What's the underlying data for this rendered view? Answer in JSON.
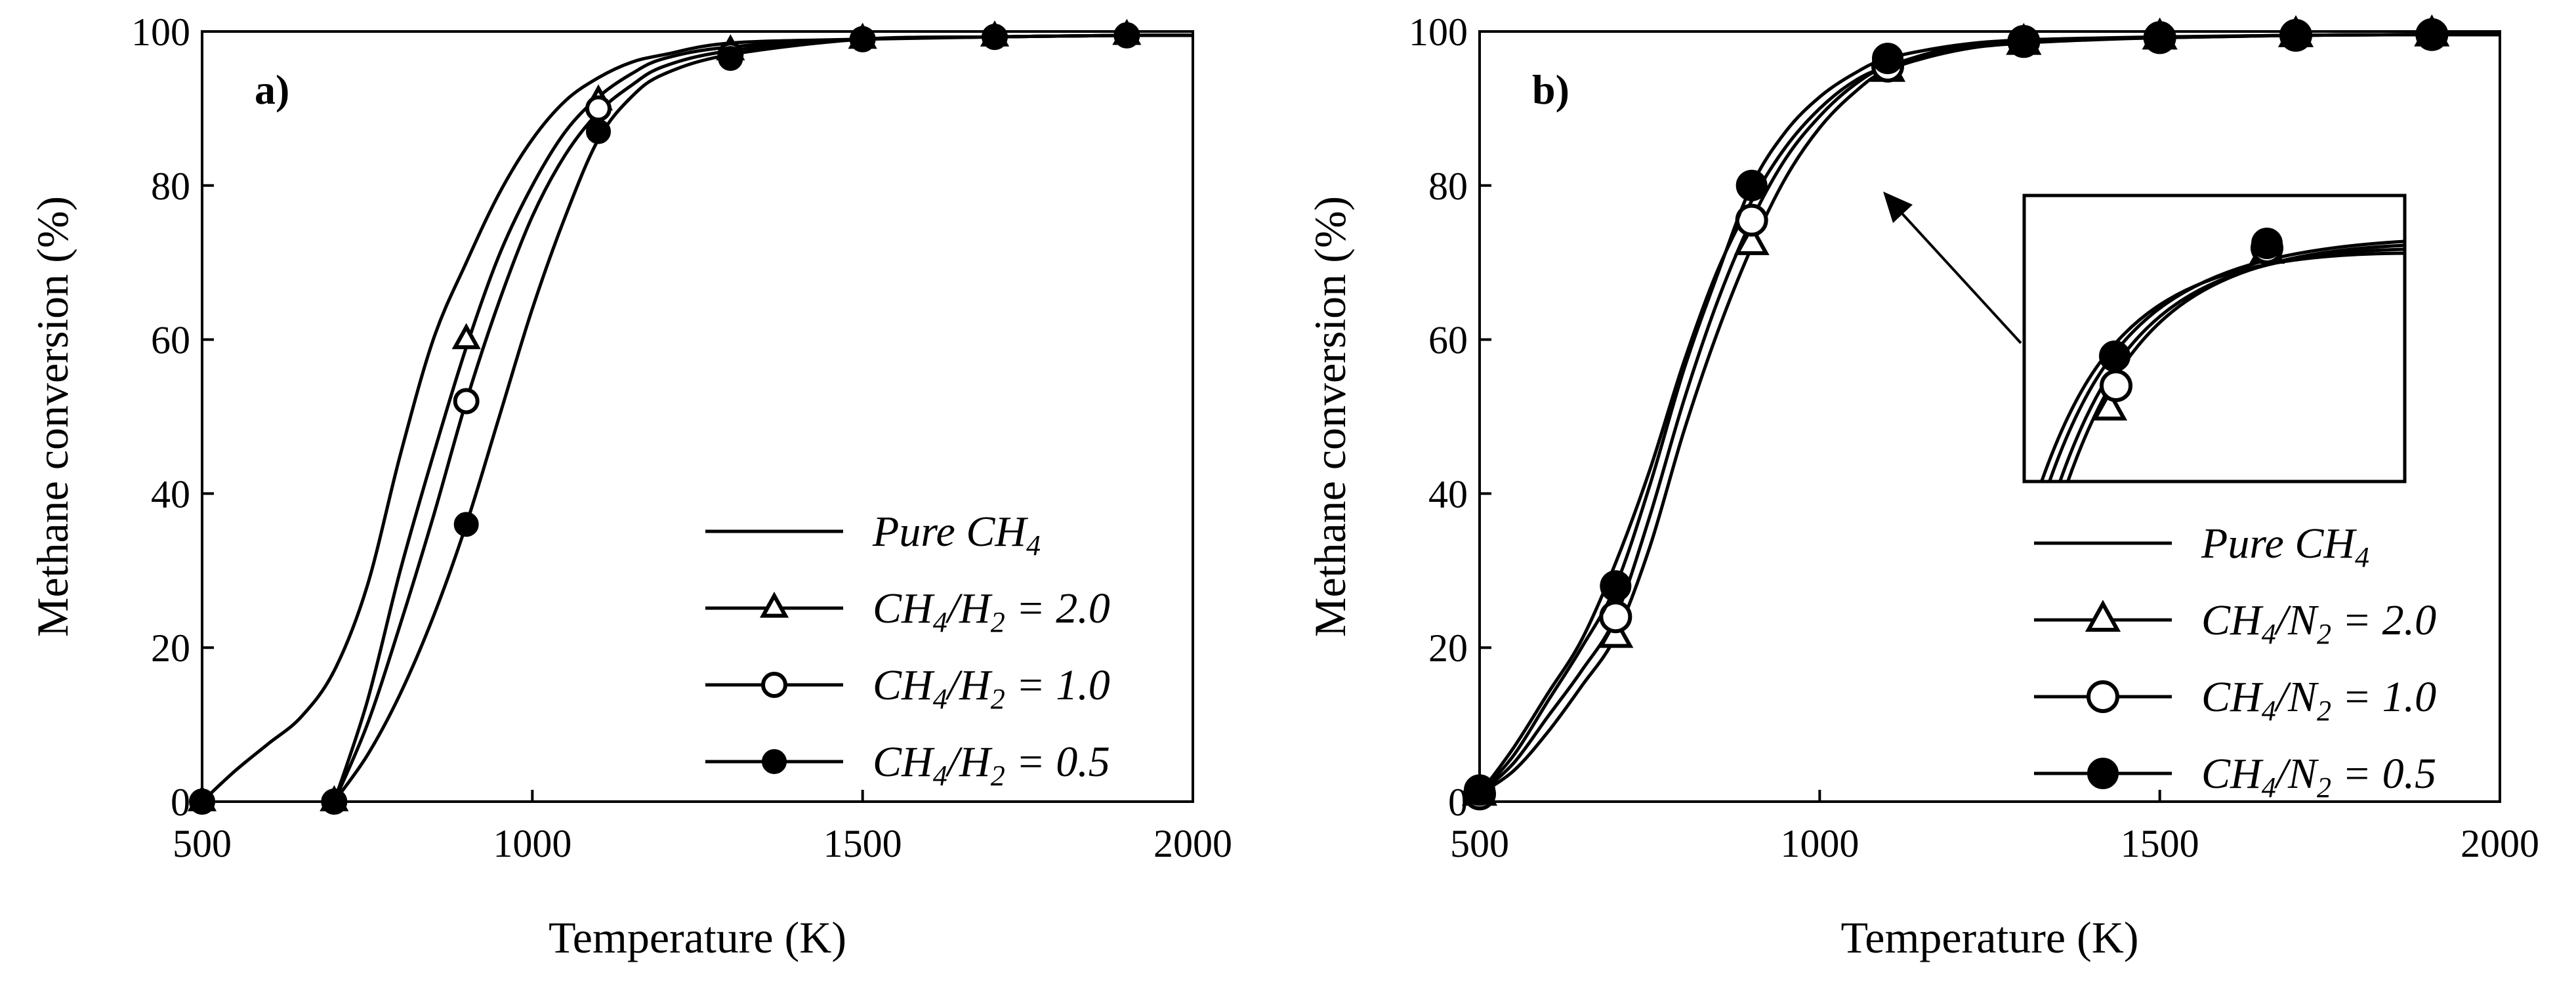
{
  "chart_data": [
    {
      "type": "line",
      "panel_label": "a)",
      "xlabel": "Temperature (K)",
      "ylabel": "Methane conversion (%)",
      "xlim": [
        500,
        2000
      ],
      "ylim": [
        0,
        100
      ],
      "xticks": [
        500,
        1000,
        1500,
        2000
      ],
      "yticks": [
        0,
        20,
        40,
        60,
        80,
        100
      ],
      "legend_position": "bottom-right",
      "series": [
        {
          "name": "Pure CH4",
          "label": {
            "main": "Pure CH",
            "sub": "4",
            "tail": ""
          },
          "marker": "none",
          "curve": {
            "x": [
              500,
              550,
              600,
              650,
              700,
              750,
              800,
              850,
              900,
              950,
              1000,
              1050,
              1100,
              1150,
              1200,
              1300,
              1500,
              1700,
              1900,
              2000
            ],
            "y": [
              0,
              4,
              7.5,
              11,
              17,
              28,
              45,
              60,
              70,
              79,
              86,
              91,
              94,
              96,
              97,
              98.5,
              99,
              99.3,
              99.5,
              99.5
            ]
          },
          "points": {
            "x": [],
            "y": []
          }
        },
        {
          "name": "CH4/H2 = 2.0",
          "label": {
            "main": "CH",
            "sub": "4",
            "tail": "/H",
            "sub2": "2",
            "end": " = 2.0"
          },
          "marker": "triangle-open",
          "curve": {
            "x": [
              700,
              750,
              800,
              850,
              900,
              950,
              1000,
              1050,
              1100,
              1150,
              1200,
              1300,
              1500,
              1700,
              1900,
              2000
            ],
            "y": [
              0,
              13,
              30,
              45,
              59,
              71,
              80,
              87,
              91.5,
              94.5,
              96.5,
              98,
              99,
              99.3,
              99.5,
              99.5
            ]
          },
          "points": {
            "x": [
              500,
              700,
              900,
              1100,
              1300,
              1500,
              1700,
              1900
            ],
            "y": [
              0,
              0,
              60,
              91,
              97.5,
              99,
              99.3,
              99.5
            ]
          }
        },
        {
          "name": "CH4/H2 = 1.0",
          "label": {
            "main": "CH",
            "sub": "4",
            "tail": "/H",
            "sub2": "2",
            "end": " = 1.0"
          },
          "marker": "circle-open",
          "curve": {
            "x": [
              700,
              750,
              800,
              850,
              900,
              950,
              1000,
              1050,
              1100,
              1150,
              1200,
              1300,
              1500,
              1700,
              1900,
              2000
            ],
            "y": [
              0,
              10,
              23,
              37,
              52,
              65,
              76,
              84,
              89.5,
              93,
              95.5,
              97.5,
              99,
              99.3,
              99.5,
              99.5
            ]
          },
          "points": {
            "x": [
              500,
              700,
              900,
              1100,
              1300,
              1500,
              1700,
              1900
            ],
            "y": [
              0,
              0,
              52,
              90,
              97,
              99,
              99.3,
              99.5
            ]
          }
        },
        {
          "name": "CH4/H2 = 0.5",
          "label": {
            "main": "CH",
            "sub": "4",
            "tail": "/H",
            "sub2": "2",
            "end": " = 0.5"
          },
          "marker": "circle-filled",
          "curve": {
            "x": [
              700,
              750,
              800,
              850,
              900,
              950,
              1000,
              1050,
              1100,
              1150,
              1200,
              1300,
              1500,
              1700,
              1900,
              2000
            ],
            "y": [
              0,
              6,
              14,
              24,
              36,
              50,
              64,
              76,
              86,
              91.5,
              94.5,
              97,
              99,
              99.3,
              99.5,
              99.5
            ]
          },
          "points": {
            "x": [
              500,
              700,
              900,
              1100,
              1300,
              1500,
              1700,
              1900
            ],
            "y": [
              0,
              0,
              36,
              87,
              96.5,
              99,
              99.3,
              99.5
            ]
          }
        }
      ]
    },
    {
      "type": "line",
      "panel_label": "b)",
      "xlabel": "Temperature (K)",
      "ylabel": "Methane conversion (%)",
      "xlim": [
        500,
        2000
      ],
      "ylim": [
        0,
        100
      ],
      "xticks": [
        500,
        1000,
        1500,
        2000
      ],
      "yticks": [
        0,
        20,
        40,
        60,
        80,
        100
      ],
      "legend_position": "bottom-right",
      "inset": "magnified view of curves near 900 K",
      "series": [
        {
          "name": "Pure CH4",
          "label": {
            "main": "Pure CH",
            "sub": "4",
            "tail": ""
          },
          "marker": "none",
          "curve": {
            "x": [
              500,
              550,
              600,
              650,
              700,
              750,
              800,
              850,
              900,
              950,
              1000,
              1050,
              1100,
              1200,
              1300,
              1500,
              1700,
              1900,
              2000
            ],
            "y": [
              1,
              7,
              14,
              21,
              31,
              43,
              57,
              69,
              78,
              85,
              90,
              93.5,
              95.5,
              98,
              98.8,
              99.2,
              99.5,
              99.6,
              99.6
            ]
          },
          "points": {
            "x": [],
            "y": []
          }
        },
        {
          "name": "CH4/N2 = 2.0",
          "label": {
            "main": "CH",
            "sub": "4",
            "tail": "/N",
            "sub2": "2",
            "end": " = 2.0"
          },
          "marker": "triangle-open",
          "curve": {
            "x": [
              500,
              550,
              600,
              650,
              700,
              750,
              800,
              850,
              900,
              950,
              1000,
              1050,
              1100,
              1200,
              1300,
              1500,
              1700,
              1900,
              2000
            ],
            "y": [
              1,
              4,
              9,
              15,
              21.5,
              33,
              48,
              61,
              72,
              81,
              87.5,
              92,
              95,
              97.5,
              98.5,
              99.2,
              99.5,
              99.6,
              99.6
            ]
          },
          "points": {
            "x": [
              500,
              700,
              900,
              1100,
              1300,
              1500,
              1700,
              1900
            ],
            "y": [
              1,
              21.5,
              72.5,
              95,
              98.5,
              99.2,
              99.5,
              99.6
            ]
          }
        },
        {
          "name": "CH4/N2 = 1.0",
          "label": {
            "main": "CH",
            "sub": "4",
            "tail": "/N",
            "sub2": "2",
            "end": " = 1.0"
          },
          "marker": "circle-open",
          "curve": {
            "x": [
              500,
              550,
              600,
              650,
              700,
              750,
              800,
              850,
              900,
              950,
              1000,
              1050,
              1100,
              1200,
              1300,
              1500,
              1700,
              1900,
              2000
            ],
            "y": [
              1,
              5,
              11,
              17,
              24,
              37,
              52,
              65,
              75.5,
              83.5,
              89,
              93,
              95.5,
              97.8,
              98.7,
              99.2,
              99.5,
              99.6,
              99.6
            ]
          },
          "points": {
            "x": [
              500,
              700,
              900,
              1100,
              1300,
              1500,
              1700,
              1900
            ],
            "y": [
              1,
              24,
              75.5,
              95.5,
              98.7,
              99.2,
              99.5,
              99.6
            ]
          }
        },
        {
          "name": "CH4/N2 = 0.5",
          "label": {
            "main": "CH",
            "sub": "4",
            "tail": "/N",
            "sub2": "2",
            "end": " = 0.5"
          },
          "marker": "circle-filled",
          "curve": {
            "x": [
              500,
              550,
              600,
              650,
              700,
              750,
              800,
              850,
              900,
              950,
              1000,
              1050,
              1100,
              1200,
              1300,
              1500,
              1700,
              1900,
              2000
            ],
            "y": [
              1,
              6,
              13,
              20,
              28,
              41,
              56,
              68.5,
              80,
              87,
              91.5,
              94.5,
              96.5,
              98.2,
              98.9,
              99.3,
              99.5,
              99.6,
              99.6
            ]
          },
          "points": {
            "x": [
              500,
              700,
              900,
              1100,
              1300,
              1500,
              1700,
              1900
            ],
            "y": [
              1.5,
              28,
              80,
              96.5,
              98.8,
              99.3,
              99.5,
              99.6
            ]
          }
        }
      ],
      "inset_points": [
        {
          "series": "CH4/N2 = 2.0",
          "marker": "triangle-open"
        },
        {
          "series": "CH4/N2 = 1.0",
          "marker": "circle-open"
        },
        {
          "series": "CH4/N2 = 0.5",
          "marker": "circle-filled"
        }
      ]
    }
  ]
}
